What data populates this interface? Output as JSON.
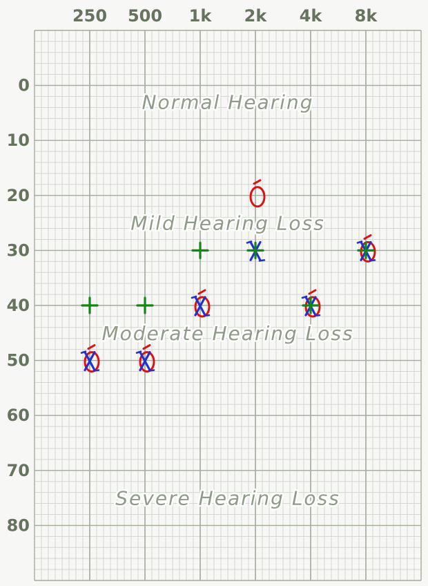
{
  "chart_data": {
    "type": "scatter",
    "title": "",
    "xlabel": "",
    "ylabel": "",
    "grid": true,
    "y_inverted": true,
    "x_ticks": [
      "250",
      "500",
      "1k",
      "2k",
      "4k",
      "8k"
    ],
    "y_ticks": [
      0,
      10,
      20,
      30,
      40,
      50,
      60,
      70,
      80
    ],
    "ylim": [
      -10,
      90
    ],
    "regions": [
      {
        "label": "Normal Hearing",
        "y": 3
      },
      {
        "label": "Mild Hearing Loss",
        "y": 25
      },
      {
        "label": "Moderate Hearing Loss",
        "y": 45
      },
      {
        "label": "Severe Hearing Loss",
        "y": 75
      }
    ],
    "series": [
      {
        "symbol": "O",
        "color": "#dd1111",
        "points": [
          [
            "250",
            50
          ],
          [
            "500",
            50
          ],
          [
            "1k",
            40
          ],
          [
            "2k",
            20
          ],
          [
            "4k",
            40
          ],
          [
            "8k",
            30
          ]
        ]
      },
      {
        "symbol": "X",
        "color": "#2233cc",
        "points": [
          [
            "250",
            50
          ],
          [
            "500",
            50
          ],
          [
            "1k",
            40
          ],
          [
            "2k",
            30
          ],
          [
            "4k",
            40
          ],
          [
            "8k",
            30
          ]
        ]
      },
      {
        "symbol": "+",
        "color": "#118811",
        "points": [
          [
            "250",
            40
          ],
          [
            "500",
            40
          ],
          [
            "1k",
            30
          ],
          [
            "2k",
            30
          ],
          [
            "4k",
            40
          ],
          [
            "8k",
            30
          ]
        ]
      }
    ],
    "colors": {
      "grid_major": "#a3ab9c",
      "grid_minor": "#d3d7cf",
      "tick_text": "#66735e"
    }
  }
}
